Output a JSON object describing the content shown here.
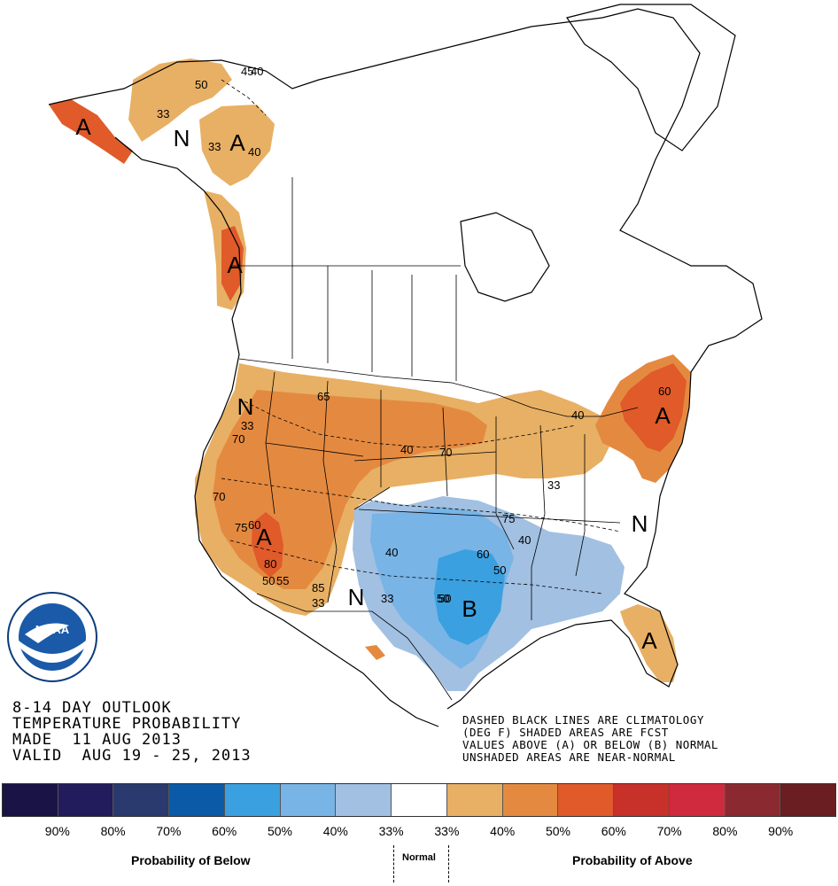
{
  "outlook": {
    "title_line1": "8-14 DAY OUTLOOK",
    "title_line2": "TEMPERATURE PROBABILITY",
    "title_line3": "MADE  11 AUG 2013",
    "title_line4": "VALID  AUG 19 - 25, 2013"
  },
  "notes": {
    "line1": "DASHED BLACK LINES ARE CLIMATOLOGY",
    "line2": "(DEG F) SHADED AREAS ARE FCST",
    "line3": "VALUES ABOVE (A) OR BELOW (B) NORMAL",
    "line4": "UNSHADED AREAS ARE NEAR-NORMAL"
  },
  "legend": {
    "swatches": [
      {
        "color": "#1a1446"
      },
      {
        "color": "#221c5c"
      },
      {
        "color": "#2a3a6e"
      },
      {
        "color": "#0a5aa8"
      },
      {
        "color": "#3aa0e0"
      },
      {
        "color": "#78b4e6"
      },
      {
        "color": "#a2c0e2"
      },
      {
        "color": "#ffffff"
      },
      {
        "color": "#e8b064"
      },
      {
        "color": "#e48a40"
      },
      {
        "color": "#e05a2a"
      },
      {
        "color": "#c8302a"
      },
      {
        "color": "#d02a3e"
      },
      {
        "color": "#8a2a30"
      },
      {
        "color": "#6a1e22"
      }
    ],
    "labels": [
      "90%",
      "80%",
      "70%",
      "60%",
      "50%",
      "40%",
      "33%",
      "33%",
      "40%",
      "50%",
      "60%",
      "70%",
      "80%",
      "90%"
    ],
    "below_label": "Probability of Below",
    "normal_label": "Normal",
    "above_label": "Probability of Above"
  },
  "map_markers": [
    {
      "text": "A"
    },
    {
      "text": "N"
    },
    {
      "text": "A"
    },
    {
      "text": "A"
    },
    {
      "text": "N"
    },
    {
      "text": "A"
    },
    {
      "text": "A"
    },
    {
      "text": "N"
    },
    {
      "text": "N"
    },
    {
      "text": "B"
    },
    {
      "text": "A"
    }
  ],
  "map_values": [
    "45",
    "40",
    "50",
    "33",
    "33",
    "40",
    "65",
    "60",
    "33",
    "70",
    "40",
    "70",
    "40",
    "70",
    "60",
    "33",
    "75",
    "75",
    "40",
    "60",
    "50",
    "40",
    "50",
    "80",
    "50",
    "85",
    "33",
    "33",
    "50",
    "55"
  ],
  "colors": {
    "above_33": "#e8b064",
    "above_40": "#e48a40",
    "above_50": "#e05a2a",
    "below_33": "#a2c0e2",
    "below_40": "#78b4e6",
    "below_50": "#3aa0e0"
  },
  "logo": {
    "text": "NOAA"
  }
}
